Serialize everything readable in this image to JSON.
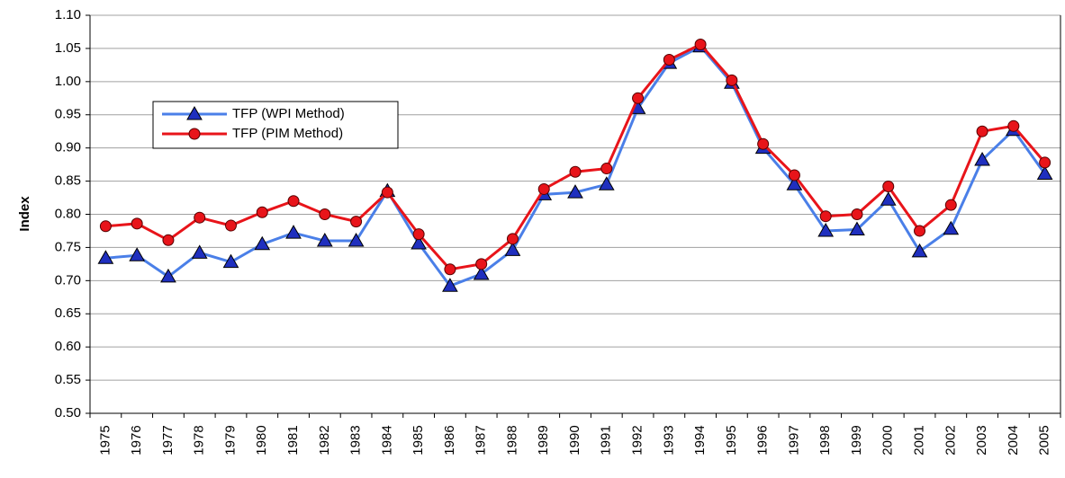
{
  "chart_data": {
    "type": "line",
    "y_label": "Index",
    "categories": [
      "1975",
      "1976",
      "1977",
      "1978",
      "1979",
      "1980",
      "1981",
      "1982",
      "1983",
      "1984",
      "1985",
      "1986",
      "1987",
      "1988",
      "1989",
      "1990",
      "1991",
      "1992",
      "1993",
      "1994",
      "1995",
      "1996",
      "1997",
      "1998",
      "1999",
      "2000",
      "2001",
      "2002",
      "2003",
      "2004",
      "2005"
    ],
    "series": [
      {
        "name": "TFP (WPI Method)",
        "color": "#4a7fe8",
        "marker": "triangle",
        "marker_color": "#1f2fbf",
        "values": [
          0.734,
          0.738,
          0.706,
          0.742,
          0.728,
          0.755,
          0.772,
          0.76,
          0.76,
          0.835,
          0.756,
          0.692,
          0.71,
          0.746,
          0.83,
          0.833,
          0.845,
          0.96,
          1.028,
          1.053,
          0.998,
          0.9,
          0.845,
          0.775,
          0.777,
          0.822,
          0.744,
          0.778,
          0.882,
          0.927,
          0.861
        ]
      },
      {
        "name": "TFP (PIM Method)",
        "color": "#e8141a",
        "marker": "circle",
        "marker_color": "#e8141a",
        "values": [
          0.782,
          0.786,
          0.761,
          0.795,
          0.783,
          0.803,
          0.82,
          0.8,
          0.789,
          0.833,
          0.77,
          0.717,
          0.725,
          0.763,
          0.838,
          0.864,
          0.869,
          0.975,
          1.033,
          1.056,
          1.002,
          0.906,
          0.859,
          0.797,
          0.8,
          0.842,
          0.775,
          0.814,
          0.925,
          0.933,
          0.878
        ]
      }
    ],
    "ylim": [
      0.5,
      1.1
    ],
    "yticks": [
      {
        "value": 0.5,
        "label": "0.50"
      },
      {
        "value": 0.55,
        "label": "0.55"
      },
      {
        "value": 0.6,
        "label": "0.60"
      },
      {
        "value": 0.65,
        "label": "0.65"
      },
      {
        "value": 0.7,
        "label": "0.70"
      },
      {
        "value": 0.75,
        "label": "0.75"
      },
      {
        "value": 0.8,
        "label": "0.80"
      },
      {
        "value": 0.85,
        "label": "0.85"
      },
      {
        "value": 0.9,
        "label": "0.90"
      },
      {
        "value": 0.95,
        "label": "0.95"
      },
      {
        "value": 1.0,
        "label": "1.00"
      },
      {
        "value": 1.05,
        "label": "1.05"
      },
      {
        "value": 1.1,
        "label": "1.10"
      }
    ],
    "grid": true,
    "legend": "upper-left"
  }
}
